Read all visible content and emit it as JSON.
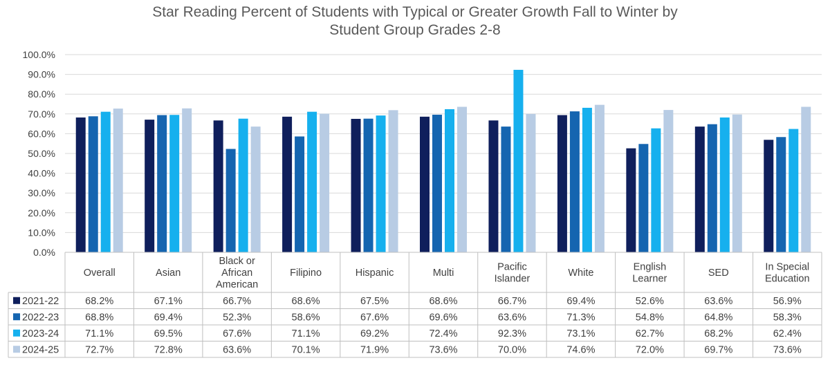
{
  "chart_data": {
    "type": "bar",
    "title": "Star Reading Percent of Students with Typical or Greater Growth Fall to Winter by Student Group Grades 2-8",
    "title_lines": [
      "Star Reading Percent of Students with Typical or Greater Growth Fall to Winter by",
      "Student Group Grades 2-8"
    ],
    "categories": [
      "Overall",
      "Asian",
      "Black or African American",
      "Filipino",
      "Hispanic",
      "Multi",
      "Pacific Islander",
      "White",
      "English Learner",
      "SED",
      "In Special Education"
    ],
    "category_lines": [
      [
        "Overall"
      ],
      [
        "Asian"
      ],
      [
        "Black or",
        "African",
        "American"
      ],
      [
        "Filipino"
      ],
      [
        "Hispanic"
      ],
      [
        "Multi"
      ],
      [
        "Pacific",
        "Islander"
      ],
      [
        "White"
      ],
      [
        "English",
        "Learner"
      ],
      [
        "SED"
      ],
      [
        "In Special",
        "Education"
      ]
    ],
    "ylim": [
      0,
      100
    ],
    "yticks": [
      "0.0%",
      "10.0%",
      "20.0%",
      "30.0%",
      "40.0%",
      "50.0%",
      "60.0%",
      "70.0%",
      "80.0%",
      "90.0%",
      "100.0%"
    ],
    "grid": true,
    "legend_placement": "data-table-left",
    "series": [
      {
        "name": "2021-22",
        "color": "#0f1f5c",
        "values": [
          68.2,
          67.1,
          66.7,
          68.6,
          67.5,
          68.6,
          66.7,
          69.4,
          52.6,
          63.6,
          56.9
        ],
        "labels": [
          "68.2%",
          "67.1%",
          "66.7%",
          "68.6%",
          "67.5%",
          "68.6%",
          "66.7%",
          "69.4%",
          "52.6%",
          "63.6%",
          "56.9%"
        ]
      },
      {
        "name": "2022-23",
        "color": "#1565b0",
        "values": [
          68.8,
          69.4,
          52.3,
          58.6,
          67.6,
          69.6,
          63.6,
          71.3,
          54.8,
          64.8,
          58.3
        ],
        "labels": [
          "68.8%",
          "69.4%",
          "52.3%",
          "58.6%",
          "67.6%",
          "69.6%",
          "63.6%",
          "71.3%",
          "54.8%",
          "64.8%",
          "58.3%"
        ]
      },
      {
        "name": "2023-24",
        "color": "#16b0ee",
        "values": [
          71.1,
          69.5,
          67.6,
          71.1,
          69.2,
          72.4,
          92.3,
          73.1,
          62.7,
          68.2,
          62.4
        ],
        "labels": [
          "71.1%",
          "69.5%",
          "67.6%",
          "71.1%",
          "69.2%",
          "72.4%",
          "92.3%",
          "73.1%",
          "62.7%",
          "68.2%",
          "62.4%"
        ]
      },
      {
        "name": "2024-25",
        "color": "#b8cce4",
        "values": [
          72.7,
          72.8,
          63.6,
          70.1,
          71.9,
          73.6,
          70.0,
          74.6,
          72.0,
          69.7,
          73.6
        ],
        "labels": [
          "72.7%",
          "72.8%",
          "63.6%",
          "70.1%",
          "71.9%",
          "73.6%",
          "70.0%",
          "74.6%",
          "72.0%",
          "69.7%",
          "73.6%"
        ]
      }
    ]
  }
}
